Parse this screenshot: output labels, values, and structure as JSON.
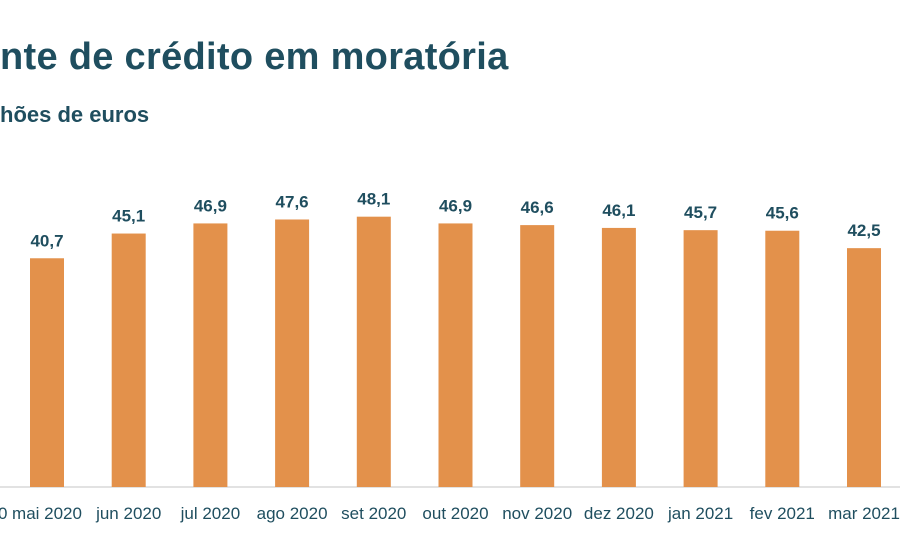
{
  "title": "nte de crédito em moratória",
  "subtitle": "hões de euros",
  "colors": {
    "bar": "#e3914b",
    "text": "#1f4e5f",
    "axis": "#d9d9d9"
  },
  "chart_data": {
    "type": "bar",
    "title": "nte de crédito em moratória",
    "subtitle": "hões de euros",
    "xlabel": "",
    "ylabel": "",
    "ylim": [
      0,
      50
    ],
    "grid": false,
    "categories": [
      "mai 2020",
      "jun 2020",
      "jul 2020",
      "ago 2020",
      "set 2020",
      "out 2020",
      "nov 2020",
      "dez 2020",
      "jan 2021",
      "fev 2021",
      "mar 2021"
    ],
    "value_labels": [
      "40,7",
      "45,1",
      "46,9",
      "47,6",
      "48,1",
      "46,9",
      "46,6",
      "46,1",
      "45,7",
      "45,6",
      "42,5"
    ],
    "values": [
      40.7,
      45.1,
      46.9,
      47.6,
      48.1,
      46.9,
      46.6,
      46.1,
      45.7,
      45.6,
      42.5
    ]
  }
}
